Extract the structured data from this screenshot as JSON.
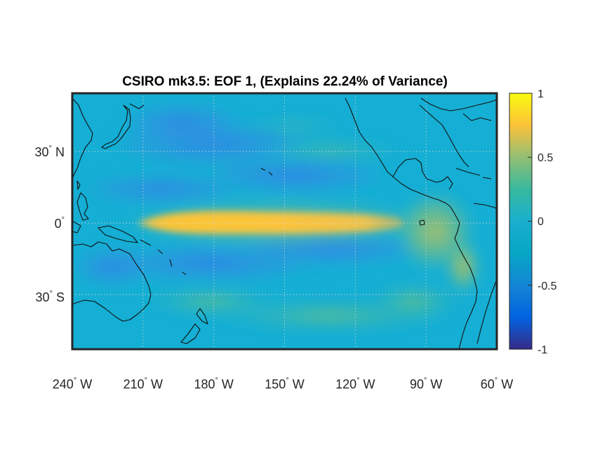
{
  "title": "CSIRO mk3.5: EOF 1, (Explains 22.24% of Variance)",
  "map": {
    "lon_range": [
      "240° W",
      "60° W"
    ],
    "lat_range": [
      "55° S",
      "55° N"
    ],
    "grid": "dotted white meridians and parallels every 30°",
    "coastlines": true,
    "x_ticks": [
      {
        "deg": "240",
        "hemi": "W"
      },
      {
        "deg": "210",
        "hemi": "W"
      },
      {
        "deg": "180",
        "hemi": "W"
      },
      {
        "deg": "150",
        "hemi": "W"
      },
      {
        "deg": "120",
        "hemi": "W"
      },
      {
        "deg": "90",
        "hemi": "W"
      },
      {
        "deg": "60",
        "hemi": "W"
      }
    ],
    "y_ticks": [
      {
        "deg": "30",
        "hemi": "N"
      },
      {
        "deg": "0",
        "hemi": ""
      },
      {
        "deg": "30",
        "hemi": "S"
      }
    ]
  },
  "colorbar": {
    "colormap": "parula",
    "range": [
      -1,
      1
    ],
    "colors": [
      "#352a87",
      "#0363e1",
      "#1485d4",
      "#06a7c6",
      "#38b99e",
      "#92bf73",
      "#d9ba56",
      "#fcce2e",
      "#f9fb0e"
    ],
    "ticks": [
      "1",
      "0.5",
      "0",
      "-0.5",
      "-1"
    ]
  },
  "field_colors": {
    "background": "#15aed4",
    "cool_band": "#2f8be6",
    "neutral_band": "#2fb9c4",
    "warm_tongue_core": "#fcc23a",
    "warm_tongue_edge": "#e7c34d",
    "mid_band": "#68bf86",
    "coastal_warm": "#c6bf5a"
  }
}
